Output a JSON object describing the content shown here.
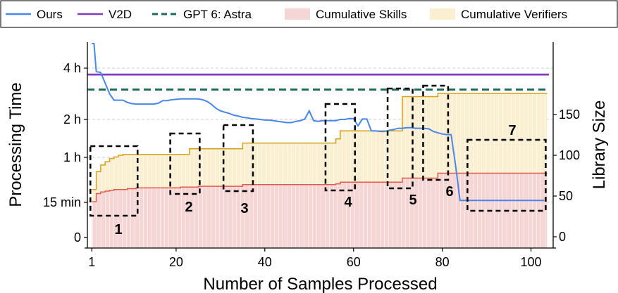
{
  "chart_data": {
    "type": "line",
    "xlabel": "Number of Samples Processed",
    "ylabel_left": "Processing Time",
    "ylabel_right": "Library Size",
    "xlim": [
      0,
      105
    ],
    "x_ticks": [
      1,
      20,
      40,
      60,
      80,
      100
    ],
    "y_left_ticks": [
      {
        "label": "0",
        "minutes": 0
      },
      {
        "label": "15 min",
        "minutes": 15
      },
      {
        "label": "1 h",
        "minutes": 60
      },
      {
        "label": "2 h",
        "minutes": 120
      },
      {
        "label": "4 h",
        "minutes": 240
      }
    ],
    "y_right_ticks": [
      0,
      50,
      100,
      150
    ],
    "legend": [
      {
        "label": "Ours",
        "kind": "line",
        "color": "#4a86e8"
      },
      {
        "label": "V2D",
        "kind": "line",
        "color": "#7e3fbf"
      },
      {
        "label": "GPT 6: Astra",
        "kind": "dashed",
        "color": "#1b6b5a"
      },
      {
        "label": "Cumulative Skills",
        "kind": "patch",
        "color": "#f6d6d4"
      },
      {
        "label": "Cumulative Verifiers",
        "kind": "patch",
        "color": "#fbefd2"
      }
    ],
    "series": [
      {
        "name": "Ours",
        "color": "#4a86e8",
        "x": [
          1,
          1.5,
          2,
          2.5,
          3,
          4,
          5,
          6,
          7,
          8,
          9,
          10,
          11,
          12,
          13,
          14,
          15,
          16,
          17,
          18,
          19,
          20,
          21,
          22,
          23,
          24,
          25,
          26,
          27,
          28,
          29,
          30,
          31,
          32,
          33,
          34,
          35,
          36,
          37,
          38,
          39,
          40,
          41,
          42,
          43,
          44,
          45,
          46,
          47,
          48,
          49,
          50,
          51,
          52,
          53,
          54,
          55,
          56,
          57,
          58,
          59,
          60,
          61,
          62,
          63,
          64,
          65,
          66,
          67,
          68,
          69,
          70,
          71,
          72,
          73,
          74,
          75,
          76,
          77,
          78,
          79,
          80,
          81,
          82,
          83,
          84,
          85,
          86,
          86.5,
          87,
          88,
          90,
          92,
          95,
          98,
          100,
          102,
          103
        ],
        "y": [
          300,
          300,
          232,
          231,
          230,
          205,
          180,
          165,
          165,
          165,
          160,
          157,
          156,
          156,
          156,
          156,
          156,
          158,
          164,
          164,
          166,
          167,
          168,
          168,
          168,
          168,
          168,
          166,
          162,
          155,
          146,
          140,
          137,
          134,
          130,
          128,
          125,
          124,
          122,
          121,
          120,
          119,
          119,
          118,
          117,
          116,
          115,
          115,
          117,
          118,
          121,
          140,
          118,
          117,
          118,
          118,
          118,
          118,
          120,
          120,
          122,
          122,
          110,
          121,
          121,
          102,
          102,
          101,
          101,
          103,
          104,
          106,
          106,
          107,
          107,
          106,
          106,
          106,
          105,
          101,
          99,
          97,
          96,
          96,
          52,
          17,
          17,
          17,
          17,
          17,
          17,
          17,
          17,
          17,
          17,
          17,
          17,
          17
        ]
      },
      {
        "name": "V2D",
        "color": "#7e3fbf",
        "x": [
          0,
          105
        ],
        "y": [
          225,
          225
        ]
      },
      {
        "name": "GPT 6: Astra",
        "color": "#1b6b5a",
        "x": [
          0,
          105
        ],
        "y": [
          190,
          190
        ]
      },
      {
        "name": "Cumulative Skills",
        "axis": "right",
        "color": "#f6d6d4",
        "edge": "#e05a4a",
        "x": [
          1,
          2,
          3,
          4,
          5,
          6,
          7,
          8,
          9,
          10,
          11,
          12,
          13,
          14,
          15,
          16,
          17,
          18,
          19,
          20,
          21,
          22,
          23,
          24,
          25,
          26,
          27,
          28,
          29,
          30,
          31,
          32,
          33,
          34,
          35,
          36,
          37,
          38,
          39,
          40,
          41,
          42,
          43,
          44,
          45,
          46,
          47,
          48,
          49,
          50,
          51,
          52,
          53,
          54,
          55,
          56,
          57,
          58,
          59,
          60,
          61,
          62,
          63,
          64,
          65,
          66,
          67,
          68,
          69,
          70,
          71,
          72,
          73,
          74,
          75,
          76,
          77,
          78,
          79,
          80,
          81,
          82,
          83,
          84,
          85,
          86,
          87,
          88,
          89,
          90,
          91,
          92,
          93,
          94,
          95,
          96,
          97,
          98,
          99,
          100,
          101,
          102,
          103
        ],
        "y": [
          43,
          53,
          55,
          56,
          57,
          58,
          58,
          58,
          59,
          59,
          60,
          60,
          60,
          60,
          60,
          60,
          60,
          60,
          60,
          60,
          61,
          61,
          61,
          61,
          62,
          62,
          62,
          62,
          62,
          62,
          62,
          62,
          62,
          62,
          64,
          64,
          64,
          64,
          64,
          64,
          64,
          64,
          64,
          64,
          64,
          64,
          64,
          64,
          64,
          64,
          64,
          64,
          64,
          64,
          64,
          65,
          67,
          67,
          67,
          67,
          67,
          67,
          67,
          67,
          67,
          67,
          67,
          67,
          67,
          67,
          72,
          72,
          72,
          72,
          72,
          72,
          72,
          72,
          78,
          78,
          78,
          78,
          78,
          78,
          78,
          78,
          78,
          78,
          78,
          78,
          78,
          78,
          78,
          78,
          78,
          78,
          78,
          78,
          78,
          78,
          78,
          78,
          78
        ]
      },
      {
        "name": "Cumulative Verifiers",
        "axis": "right",
        "color": "#fbefd2",
        "edge": "#d4a017",
        "x": [
          1,
          2,
          3,
          4,
          5,
          6,
          7,
          8,
          9,
          10,
          11,
          12,
          13,
          14,
          15,
          16,
          17,
          18,
          19,
          20,
          21,
          22,
          23,
          24,
          25,
          26,
          27,
          28,
          29,
          30,
          31,
          32,
          33,
          34,
          35,
          36,
          37,
          38,
          39,
          40,
          41,
          42,
          43,
          44,
          45,
          46,
          47,
          48,
          49,
          50,
          51,
          52,
          53,
          54,
          55,
          56,
          57,
          58,
          59,
          60,
          61,
          62,
          63,
          64,
          65,
          66,
          67,
          68,
          69,
          70,
          71,
          72,
          73,
          74,
          75,
          76,
          77,
          78,
          79,
          80,
          81,
          82,
          83,
          84,
          85,
          86,
          87,
          88,
          89,
          90,
          91,
          92,
          93,
          94,
          95,
          96,
          97,
          98,
          99,
          100,
          101,
          102,
          103
        ],
        "y": [
          58,
          80,
          88,
          92,
          96,
          98,
          100,
          101,
          101,
          101,
          101,
          101,
          101,
          101,
          101,
          101,
          101,
          101,
          101,
          101,
          101,
          101,
          108,
          108,
          108,
          108,
          108,
          108,
          108,
          108,
          108,
          108,
          108,
          108,
          115,
          115,
          115,
          115,
          115,
          115,
          115,
          115,
          115,
          115,
          115,
          115,
          115,
          115,
          115,
          115,
          115,
          115,
          115,
          115,
          115,
          120,
          130,
          130,
          130,
          130,
          130,
          130,
          130,
          130,
          130,
          130,
          130,
          130,
          130,
          130,
          172,
          172,
          172,
          172,
          172,
          172,
          172,
          172,
          176,
          176,
          176,
          176,
          176,
          176,
          176,
          176,
          176,
          176,
          176,
          176,
          176,
          176,
          176,
          176,
          176,
          176,
          176,
          176,
          176,
          176,
          176,
          176,
          176
        ]
      }
    ],
    "annotations": [
      {
        "label": "1",
        "x_range": [
          1,
          11
        ]
      },
      {
        "label": "2",
        "x_range": [
          19,
          25
        ]
      },
      {
        "label": "3",
        "x_range": [
          31,
          37
        ]
      },
      {
        "label": "4",
        "x_range": [
          54,
          60
        ]
      },
      {
        "label": "5",
        "x_range": [
          68,
          73
        ]
      },
      {
        "label": "6",
        "x_range": [
          76,
          81
        ]
      },
      {
        "label": "7",
        "x_range": [
          86,
          103
        ]
      }
    ]
  }
}
